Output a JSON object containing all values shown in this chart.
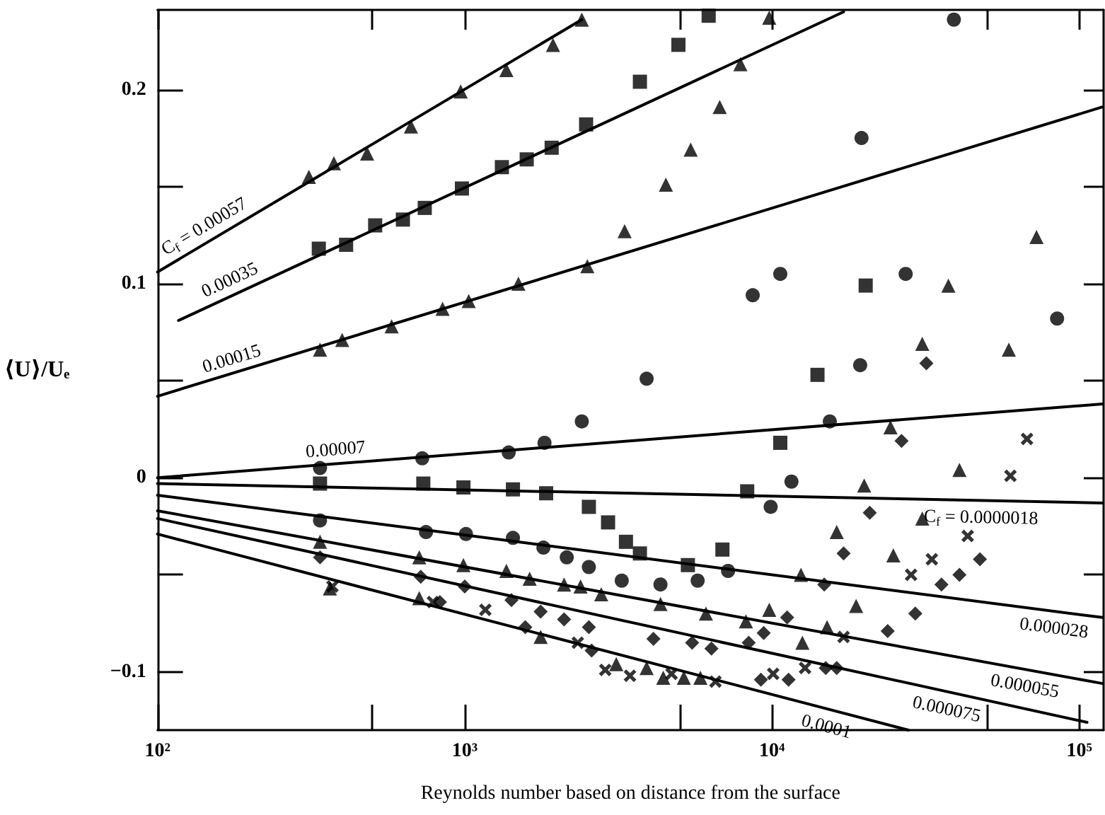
{
  "chart_data": {
    "type": "scatter",
    "xlabel": "Reynolds number based on distance from the surface",
    "ylabel": "⟨U⟩/Uₑ",
    "log": "x",
    "grid": false,
    "xlim": [
      100,
      120000
    ],
    "ylim": [
      -0.13,
      0.241
    ],
    "xticks": [
      {
        "value": 100,
        "label": "10²"
      },
      {
        "value": 500,
        "label": null
      },
      {
        "value": 1000,
        "label": "10³"
      },
      {
        "value": 5000,
        "label": null
      },
      {
        "value": 10000,
        "label": "10⁴"
      },
      {
        "value": 50000,
        "label": null
      },
      {
        "value": 100000,
        "label": "10⁵"
      }
    ],
    "yticks": [
      {
        "value": -0.1,
        "label": "−0.1"
      },
      {
        "value": -0.05,
        "label": null
      },
      {
        "value": 0,
        "label": "0"
      },
      {
        "value": 0.05,
        "label": null
      },
      {
        "value": 0.1,
        "label": "0.1"
      },
      {
        "value": 0.15,
        "label": null
      },
      {
        "value": 0.2,
        "label": "0.2"
      }
    ],
    "series": [
      {
        "type": "line",
        "color": "#000000",
        "marker": "none",
        "line_style": "solid",
        "x": [
          100,
          2404
        ],
        "values": [
          0.106,
          0.236
        ]
      },
      {
        "type": "line",
        "color": "#000000",
        "marker": "none",
        "line_style": "solid",
        "x": [
          117,
          17100
        ],
        "values": [
          0.081,
          0.24
        ]
      },
      {
        "type": "line",
        "color": "#000000",
        "marker": "none",
        "line_style": "solid",
        "x": [
          100,
          119000
        ],
        "values": [
          0.042,
          0.191
        ]
      },
      {
        "type": "line",
        "color": "#000000",
        "marker": "none",
        "line_style": "solid",
        "x": [
          100,
          119000
        ],
        "values": [
          0,
          0.038
        ]
      },
      {
        "type": "line",
        "color": "#000000",
        "marker": "none",
        "line_style": "solid",
        "x": [
          100,
          119000
        ],
        "values": [
          -0.003,
          -0.013
        ]
      },
      {
        "type": "line",
        "color": "#000000",
        "marker": "none",
        "line_style": "solid",
        "x": [
          100,
          119000
        ],
        "values": [
          -0.009,
          -0.072
        ]
      },
      {
        "type": "line",
        "color": "#000000",
        "marker": "none",
        "line_style": "solid",
        "x": [
          100,
          119000
        ],
        "values": [
          -0.017,
          -0.106
        ]
      },
      {
        "type": "line",
        "color": "#000000",
        "marker": "none",
        "line_style": "solid",
        "x": [
          100,
          106000
        ],
        "values": [
          -0.021,
          -0.126
        ]
      },
      {
        "type": "line",
        "color": "#000000",
        "marker": "none",
        "line_style": "solid",
        "x": [
          100,
          27800
        ],
        "values": [
          -0.029,
          -0.13
        ]
      },
      {
        "color": "#000000",
        "marker": "triangle",
        "x": [
          311,
          375,
          481,
          668,
          970,
          1366,
          1937,
          2404
        ],
        "values": [
          0.155,
          0.162,
          0.167,
          0.181,
          0.199,
          0.21,
          0.223,
          0.236
        ]
      },
      {
        "color": "#000000",
        "marker": "square",
        "x": [
          335,
          411,
          511,
          629,
          741,
          979,
          1321,
          1591,
          1918,
          2483,
          3716,
          4959,
          6221
        ],
        "values": [
          0.118,
          0.12,
          0.13,
          0.133,
          0.139,
          0.149,
          0.16,
          0.164,
          0.17,
          0.182,
          0.204,
          0.223,
          0.238
        ]
      },
      {
        "color": "#000000",
        "marker": "triangle",
        "x": [
          338,
          399,
          578,
          847,
          1030,
          1495,
          2506,
          3313,
          4515,
          5436,
          6757,
          7888,
          9794
        ],
        "values": [
          0.066,
          0.071,
          0.078,
          0.087,
          0.091,
          0.1,
          0.109,
          0.127,
          0.151,
          0.169,
          0.191,
          0.213,
          0.237
        ]
      },
      {
        "color": "#000000",
        "marker": "circle",
        "x": [
          338,
          727,
          1390,
          1818,
          2404,
          3908,
          8654,
          10640,
          19560,
          39080
        ],
        "values": [
          0.005,
          0.01,
          0.013,
          0.018,
          0.029,
          0.051,
          0.094,
          0.105,
          0.175,
          0.236
        ]
      },
      {
        "color": "#000000",
        "marker": "square",
        "x": [
          338,
          733,
          990,
          1435,
          1840,
          2535,
          2927,
          3347,
          3716,
          5324,
          6896,
          8303,
          10640,
          14060,
          20180
        ],
        "values": [
          -0.003,
          -0.003,
          -0.005,
          -0.006,
          -0.008,
          -0.015,
          -0.023,
          -0.033,
          -0.039,
          -0.045,
          -0.037,
          -0.007,
          0.018,
          0.053,
          0.099
        ]
      },
      {
        "color": "#000000",
        "marker": "circle",
        "x": [
          338,
          748,
          1009,
          1435,
          1803,
          2148,
          2535,
          3243,
          4335,
          5728,
          7194,
          9900,
          11570,
          15420,
          19360,
          27230,
          84700
        ],
        "values": [
          -0.022,
          -0.028,
          -0.029,
          -0.031,
          -0.036,
          -0.041,
          -0.046,
          -0.053,
          -0.055,
          -0.053,
          -0.048,
          -0.015,
          -0.002,
          0.029,
          0.058,
          0.105,
          0.082
        ]
      },
      {
        "color": "#000000",
        "marker": "triangle",
        "x": [
          338,
          711,
          990,
          1366,
          1626,
          2105,
          2381,
          2781,
          4335,
          6095,
          8225,
          9794,
          12420,
          16240,
          19950,
          24300,
          30830,
          37500
        ],
        "values": [
          -0.033,
          -0.041,
          -0.045,
          -0.048,
          -0.052,
          -0.055,
          -0.056,
          -0.06,
          -0.065,
          -0.07,
          -0.074,
          -0.068,
          -0.05,
          -0.028,
          -0.004,
          0.026,
          0.069,
          0.099
        ]
      },
      {
        "color": "#000000",
        "marker": "diamond",
        "x": [
          338,
          719,
          1000,
          1419,
          1766,
          2105,
          2535,
          4112,
          5495,
          6353,
          8399,
          9397,
          11200,
          14790,
          17100,
          20800,
          26400,
          31800
        ],
        "values": [
          -0.041,
          -0.051,
          -0.056,
          -0.063,
          -0.069,
          -0.073,
          -0.077,
          -0.083,
          -0.085,
          -0.088,
          -0.085,
          -0.08,
          -0.072,
          -0.055,
          -0.039,
          -0.018,
          0.019,
          0.059
        ]
      },
      {
        "color": "#000000",
        "marker": "triangle",
        "x": [
          364,
          711,
          1766,
          3112,
          3908,
          4426,
          5164,
          5848,
          12560,
          15110,
          18780,
          24830,
          30830,
          40740,
          59000,
          72600
        ],
        "values": [
          -0.057,
          -0.062,
          -0.082,
          -0.096,
          -0.098,
          -0.103,
          -0.103,
          -0.103,
          -0.085,
          -0.077,
          -0.066,
          -0.04,
          -0.021,
          0.004,
          0.066,
          0.124
        ]
      },
      {
        "color": "#000000",
        "marker": "cross",
        "x": [
          371,
          788,
          1167,
          2333,
          2866,
          3450,
          4710,
          6546,
          10090,
          12810,
          17100,
          28360,
          33130,
          43350,
          59700,
          67600
        ],
        "values": [
          -0.056,
          -0.064,
          -0.068,
          -0.085,
          -0.099,
          -0.102,
          -0.101,
          -0.105,
          -0.101,
          -0.098,
          -0.082,
          -0.05,
          -0.042,
          -0.03,
          0.001,
          0.02
        ]
      },
      {
        "color": "#000000",
        "marker": "diamond",
        "x": [
          830,
          1574,
          2588,
          9204,
          11320,
          14960,
          16240,
          23800,
          29260,
          35600,
          40740,
          47500
        ],
        "values": [
          -0.064,
          -0.077,
          -0.089,
          -0.104,
          -0.104,
          -0.098,
          -0.098,
          -0.079,
          -0.07,
          -0.055,
          -0.05,
          -0.042
        ]
      }
    ],
    "annotations": [
      {
        "text": "C$_{f}$ = 0.00057",
        "x": 150,
        "y": 0.123
      },
      {
        "text": "0.00035",
        "x": 180,
        "y": 0.095
      },
      {
        "text": "0.00015",
        "x": 180,
        "y": 0.054
      },
      {
        "text": "0.00007",
        "x": 383,
        "y": 0.007
      },
      {
        "text": "C$_{f}$ = 0.0000018",
        "x": 48000,
        "y": -0.012
      },
      {
        "text": "0.000028",
        "x": 84000,
        "y": -0.069
      },
      {
        "text": "0.000055",
        "x": 68000,
        "y": -0.099
      },
      {
        "text": "0.000075",
        "x": 38000,
        "y": -0.111
      },
      {
        "text": "0.0001",
        "x": 15500,
        "y": -0.12
      }
    ]
  }
}
